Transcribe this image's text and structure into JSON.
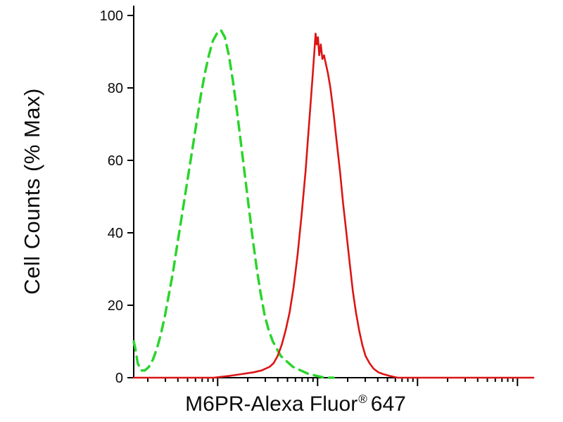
{
  "chart_data": {
    "type": "line",
    "title": "",
    "ylabel": "Cell Counts (% Max)",
    "xlabel": "M6PR-Alexa Fluor® 647",
    "xlabel_parts": {
      "prefix": "M6PR-Alexa Fluor",
      "registered": "®",
      "suffix": "647"
    },
    "ylim": [
      0,
      100
    ],
    "yticks": [
      0,
      20,
      40,
      60,
      80,
      100
    ],
    "x_axis": {
      "scale": "log",
      "decades": 4,
      "decade_offset": 0.16,
      "tick_labels_shown": false
    },
    "grid": false,
    "legend": "none",
    "axis_color": "#000000",
    "series": [
      {
        "id": "green-dashed-control",
        "color": "#2bd42b",
        "style": "dashed",
        "width": 3.5,
        "peak": {
          "x_norm": 0.218,
          "y": 96
        },
        "points": [
          [
            0.0,
            10
          ],
          [
            0.004,
            8
          ],
          [
            0.01,
            4
          ],
          [
            0.018,
            2
          ],
          [
            0.028,
            2
          ],
          [
            0.038,
            3
          ],
          [
            0.048,
            5
          ],
          [
            0.058,
            8
          ],
          [
            0.068,
            12
          ],
          [
            0.078,
            17
          ],
          [
            0.088,
            23
          ],
          [
            0.098,
            29
          ],
          [
            0.108,
            36
          ],
          [
            0.118,
            43
          ],
          [
            0.128,
            50
          ],
          [
            0.138,
            57
          ],
          [
            0.148,
            64
          ],
          [
            0.158,
            71
          ],
          [
            0.168,
            78
          ],
          [
            0.178,
            84
          ],
          [
            0.188,
            89
          ],
          [
            0.198,
            93
          ],
          [
            0.208,
            95
          ],
          [
            0.218,
            96
          ],
          [
            0.228,
            94
          ],
          [
            0.238,
            89
          ],
          [
            0.248,
            82
          ],
          [
            0.258,
            74
          ],
          [
            0.268,
            65
          ],
          [
            0.278,
            56
          ],
          [
            0.288,
            47
          ],
          [
            0.298,
            38
          ],
          [
            0.308,
            30
          ],
          [
            0.318,
            23
          ],
          [
            0.328,
            17
          ],
          [
            0.338,
            13
          ],
          [
            0.348,
            10
          ],
          [
            0.358,
            8
          ],
          [
            0.368,
            6
          ],
          [
            0.378,
            5
          ],
          [
            0.388,
            4
          ],
          [
            0.398,
            3
          ],
          [
            0.418,
            2
          ],
          [
            0.438,
            1
          ],
          [
            0.458,
            0.5
          ],
          [
            0.478,
            0
          ],
          [
            0.5,
            0
          ]
        ]
      },
      {
        "id": "red-solid-sample",
        "color": "#dd1414",
        "style": "solid",
        "width": 2.6,
        "peak": {
          "x_norm": 0.455,
          "y": 95
        },
        "points": [
          [
            0.0,
            0
          ],
          [
            0.1,
            0
          ],
          [
            0.2,
            0
          ],
          [
            0.24,
            0.5
          ],
          [
            0.27,
            1
          ],
          [
            0.3,
            1.5
          ],
          [
            0.32,
            2
          ],
          [
            0.34,
            3
          ],
          [
            0.35,
            4
          ],
          [
            0.36,
            6
          ],
          [
            0.37,
            9
          ],
          [
            0.38,
            13
          ],
          [
            0.39,
            18
          ],
          [
            0.4,
            25
          ],
          [
            0.41,
            34
          ],
          [
            0.42,
            45
          ],
          [
            0.43,
            57
          ],
          [
            0.436,
            66
          ],
          [
            0.442,
            75
          ],
          [
            0.448,
            84
          ],
          [
            0.452,
            90
          ],
          [
            0.455,
            95
          ],
          [
            0.458,
            92
          ],
          [
            0.461,
            94
          ],
          [
            0.464,
            89
          ],
          [
            0.468,
            92
          ],
          [
            0.472,
            88
          ],
          [
            0.476,
            89
          ],
          [
            0.48,
            87
          ],
          [
            0.486,
            84
          ],
          [
            0.492,
            80
          ],
          [
            0.5,
            73
          ],
          [
            0.508,
            65
          ],
          [
            0.516,
            57
          ],
          [
            0.524,
            48
          ],
          [
            0.532,
            40
          ],
          [
            0.54,
            32
          ],
          [
            0.548,
            24
          ],
          [
            0.556,
            18
          ],
          [
            0.564,
            13
          ],
          [
            0.572,
            9
          ],
          [
            0.58,
            6
          ],
          [
            0.59,
            4
          ],
          [
            0.6,
            2.5
          ],
          [
            0.612,
            1.5
          ],
          [
            0.624,
            1
          ],
          [
            0.64,
            0.5
          ],
          [
            0.66,
            0
          ],
          [
            0.8,
            0
          ],
          [
            1.0,
            0
          ]
        ]
      }
    ]
  }
}
